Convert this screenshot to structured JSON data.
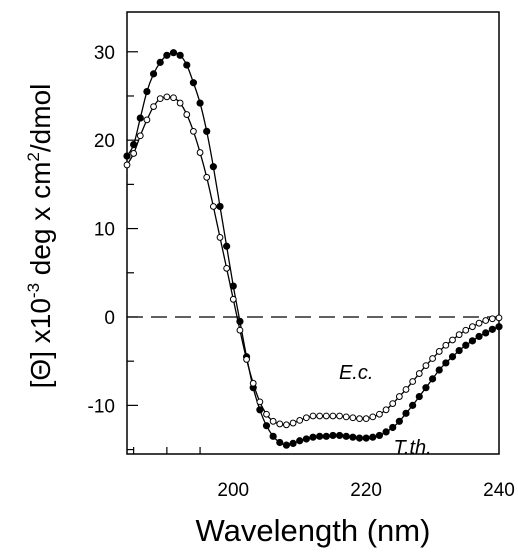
{
  "chart_data": {
    "type": "scatter",
    "title": "",
    "xlabel": "Wavelength (nm)",
    "ylabel_parts": {
      "prefix": "[Θ] x10",
      "exp1": "-3",
      "mid": " deg x cm",
      "exp2": "2",
      "suffix": "/dmol"
    },
    "xlim": [
      184,
      240
    ],
    "ylim": [
      -15.5,
      34.5
    ],
    "x_ticks": [
      200,
      220,
      240
    ],
    "x_tick_labels": [
      "200",
      "220",
      "240"
    ],
    "y_ticks": [
      -10,
      0,
      10,
      20,
      30
    ],
    "y_tick_labels": [
      "-10",
      "0",
      "10",
      "20",
      "30"
    ],
    "zero_line": true,
    "grid": false,
    "legend": "none",
    "annotations": [
      {
        "text": "E.c.",
        "x": 218.5,
        "y": -7.0,
        "series": "open"
      },
      {
        "text": "T.th.",
        "x": 227,
        "y": -15.5,
        "series": "filled"
      }
    ],
    "series": [
      {
        "marker": "filled-circle",
        "points": [
          [
            184,
            18.2
          ],
          [
            185,
            19.5
          ],
          [
            186,
            22.5
          ],
          [
            187,
            25.5
          ],
          [
            188,
            27.5
          ],
          [
            189,
            28.8
          ],
          [
            190,
            29.6
          ],
          [
            191,
            29.9
          ],
          [
            192,
            29.6
          ],
          [
            193,
            28.5
          ],
          [
            194,
            26.5
          ],
          [
            195,
            24.2
          ],
          [
            196,
            21.0
          ],
          [
            197,
            17.0
          ],
          [
            198,
            12.5
          ],
          [
            199,
            8.0
          ],
          [
            200,
            3.5
          ],
          [
            201,
            -0.5
          ],
          [
            202,
            -4.5
          ],
          [
            203,
            -8.0
          ],
          [
            204,
            -10.5
          ],
          [
            205,
            -12.3
          ],
          [
            206,
            -13.5
          ],
          [
            207,
            -14.2
          ],
          [
            208,
            -14.5
          ],
          [
            209,
            -14.3
          ],
          [
            210,
            -14.0
          ],
          [
            211,
            -13.8
          ],
          [
            212,
            -13.6
          ],
          [
            213,
            -13.5
          ],
          [
            214,
            -13.5
          ],
          [
            215,
            -13.4
          ],
          [
            216,
            -13.4
          ],
          [
            217,
            -13.5
          ],
          [
            218,
            -13.6
          ],
          [
            219,
            -13.7
          ],
          [
            220,
            -13.7
          ],
          [
            221,
            -13.6
          ],
          [
            222,
            -13.4
          ],
          [
            223,
            -13.0
          ],
          [
            224,
            -12.5
          ],
          [
            225,
            -11.8
          ],
          [
            226,
            -10.9
          ],
          [
            227,
            -10.0
          ],
          [
            228,
            -9.0
          ],
          [
            229,
            -8.0
          ],
          [
            230,
            -7.0
          ],
          [
            231,
            -6.0
          ],
          [
            232,
            -5.2
          ],
          [
            233,
            -4.5
          ],
          [
            234,
            -3.8
          ],
          [
            235,
            -3.2
          ],
          [
            236,
            -2.7
          ],
          [
            237,
            -2.2
          ],
          [
            238,
            -1.8
          ],
          [
            239,
            -1.4
          ],
          [
            240,
            -1.1
          ]
        ]
      },
      {
        "marker": "open-circle",
        "points": [
          [
            184,
            17.2
          ],
          [
            185,
            18.5
          ],
          [
            186,
            20.5
          ],
          [
            187,
            22.3
          ],
          [
            188,
            23.8
          ],
          [
            189,
            24.7
          ],
          [
            190,
            24.9
          ],
          [
            191,
            24.8
          ],
          [
            192,
            24.2
          ],
          [
            193,
            22.9
          ],
          [
            194,
            21.0
          ],
          [
            195,
            18.6
          ],
          [
            196,
            15.8
          ],
          [
            197,
            12.5
          ],
          [
            198,
            9.0
          ],
          [
            199,
            5.5
          ],
          [
            200,
            2.0
          ],
          [
            201,
            -1.5
          ],
          [
            202,
            -4.8
          ],
          [
            203,
            -7.5
          ],
          [
            204,
            -9.6
          ],
          [
            205,
            -11.0
          ],
          [
            206,
            -11.8
          ],
          [
            207,
            -12.1
          ],
          [
            208,
            -12.2
          ],
          [
            209,
            -12.0
          ],
          [
            210,
            -11.7
          ],
          [
            211,
            -11.4
          ],
          [
            212,
            -11.2
          ],
          [
            213,
            -11.2
          ],
          [
            214,
            -11.2
          ],
          [
            215,
            -11.2
          ],
          [
            216,
            -11.2
          ],
          [
            217,
            -11.3
          ],
          [
            218,
            -11.4
          ],
          [
            219,
            -11.5
          ],
          [
            220,
            -11.5
          ],
          [
            221,
            -11.3
          ],
          [
            222,
            -11.0
          ],
          [
            223,
            -10.5
          ],
          [
            224,
            -9.8
          ],
          [
            225,
            -9.0
          ],
          [
            226,
            -8.2
          ],
          [
            227,
            -7.3
          ],
          [
            228,
            -6.4
          ],
          [
            229,
            -5.5
          ],
          [
            230,
            -4.7
          ],
          [
            231,
            -3.9
          ],
          [
            232,
            -3.2
          ],
          [
            233,
            -2.6
          ],
          [
            234,
            -2.0
          ],
          [
            235,
            -1.5
          ],
          [
            236,
            -1.1
          ],
          [
            237,
            -0.7
          ],
          [
            238,
            -0.4
          ],
          [
            239,
            -0.2
          ],
          [
            240,
            -0.1
          ]
        ]
      }
    ],
    "colors": {
      "line": "#000000",
      "marker_fill": "#000000",
      "open_fill": "#ffffff"
    }
  }
}
